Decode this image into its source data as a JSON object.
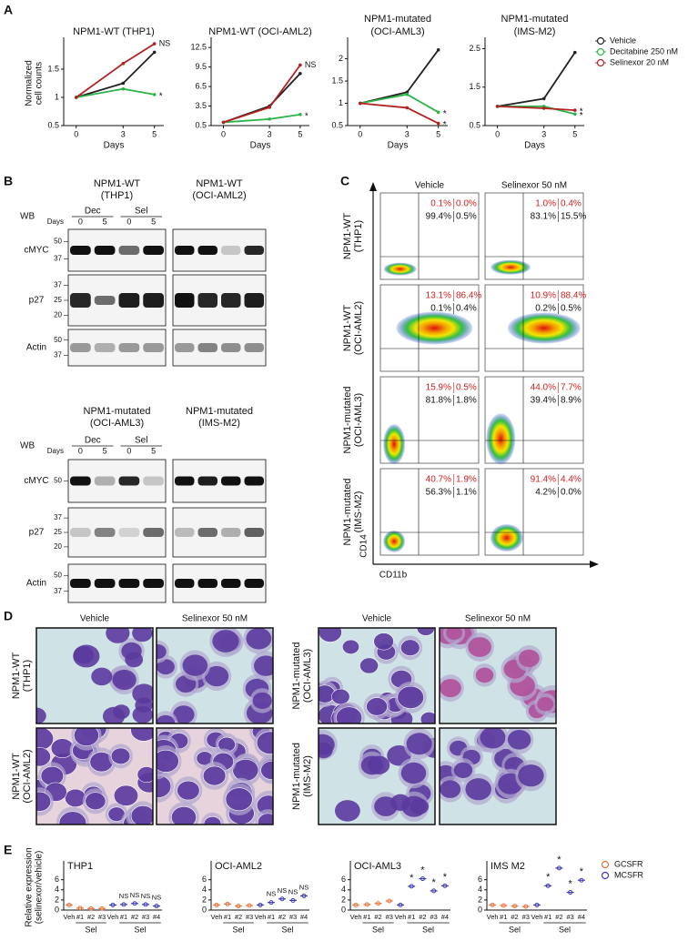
{
  "panel_labels": [
    "A",
    "B",
    "C",
    "D",
    "E"
  ],
  "chart_data": [
    {
      "type": "line",
      "title": "NPM1-WT (THP1)",
      "ylabel": [
        "Normalized",
        "cell counts"
      ],
      "xlabel": "Days",
      "x": [
        0,
        3,
        5
      ],
      "xlim": [
        -0.8,
        5.6
      ],
      "xticks": [
        0,
        3,
        5
      ],
      "ylim": [
        0.5,
        2.0
      ],
      "yticks": [
        0.5,
        1,
        1.5
      ],
      "series": [
        {
          "name": "Vehicle",
          "color": "#222222",
          "values": [
            1.0,
            1.25,
            1.8
          ]
        },
        {
          "name": "Decitabine 250 nM",
          "color": "#2db34a",
          "values": [
            1.0,
            1.15,
            1.05
          ]
        },
        {
          "name": "Selinexor 20 nM",
          "color": "#b22222",
          "values": [
            1.0,
            1.6,
            1.95
          ]
        }
      ],
      "annotations": [
        {
          "text": "NS",
          "series": 2
        },
        {
          "text": "*",
          "series": 1
        }
      ]
    },
    {
      "type": "line",
      "title": "NPM1-WT (OCI-AML2)",
      "xlabel": "Days",
      "x": [
        0,
        3,
        5
      ],
      "xlim": [
        -0.8,
        5.6
      ],
      "xticks": [
        0,
        3,
        5
      ],
      "ylim": [
        0.5,
        13.5
      ],
      "yticks": [
        0.5,
        3.5,
        6.5,
        9.5,
        12.5
      ],
      "series": [
        {
          "name": "Vehicle",
          "color": "#222222",
          "values": [
            1.0,
            3.5,
            8.5
          ]
        },
        {
          "name": "Decitabine 250 nM",
          "color": "#2db34a",
          "values": [
            1.0,
            1.5,
            2.2
          ]
        },
        {
          "name": "Selinexor 20 nM",
          "color": "#b22222",
          "values": [
            1.0,
            3.3,
            9.8
          ]
        }
      ],
      "annotations": [
        {
          "text": "NS",
          "series": 2
        },
        {
          "text": "*",
          "series": 1
        }
      ]
    },
    {
      "type": "line",
      "title": [
        "NPM1-mutated",
        "(OCI-AML3)"
      ],
      "xlabel": "Days",
      "x": [
        0,
        3,
        5
      ],
      "xlim": [
        -0.8,
        5.6
      ],
      "xticks": [
        0,
        3,
        5
      ],
      "ylim": [
        0.5,
        2.4
      ],
      "yticks": [
        0.5,
        1,
        1.5,
        2
      ],
      "series": [
        {
          "name": "Vehicle",
          "color": "#222222",
          "values": [
            1.0,
            1.25,
            2.2
          ]
        },
        {
          "name": "Decitabine 250 nM",
          "color": "#2db34a",
          "values": [
            1.0,
            1.2,
            0.8
          ]
        },
        {
          "name": "Selinexor 20 nM",
          "color": "#b22222",
          "values": [
            1.0,
            0.9,
            0.55
          ]
        }
      ],
      "annotations": [
        {
          "text": "*",
          "series": 1
        },
        {
          "text": "*",
          "series": 2
        }
      ]
    },
    {
      "type": "line",
      "title": [
        "NPM1-mutated",
        "(IMS-M2)"
      ],
      "xlabel": "Days",
      "legend": "right",
      "x": [
        0,
        3,
        5
      ],
      "xlim": [
        -0.8,
        5.6
      ],
      "xticks": [
        0,
        3,
        5
      ],
      "ylim": [
        0.5,
        2.7
      ],
      "yticks": [
        0.5,
        1.5,
        2.5
      ],
      "series": [
        {
          "name": "Vehicle",
          "color": "#222222",
          "values": [
            1.0,
            1.2,
            2.4
          ]
        },
        {
          "name": "Decitabine 250 nM",
          "color": "#2db34a",
          "values": [
            1.0,
            1.0,
            0.8
          ]
        },
        {
          "name": "Selinexor 20 nM",
          "color": "#b22222",
          "values": [
            1.0,
            0.95,
            0.9
          ]
        }
      ],
      "annotations": [
        {
          "text": "*",
          "series": 2
        },
        {
          "text": "*",
          "series": 1
        }
      ]
    },
    {
      "type": "dot",
      "title": "THP1",
      "ylabel": [
        "Relative expression",
        "(selinexor/vehicle)"
      ],
      "categories": [
        "Veh",
        "#1",
        "#2",
        "#3",
        "Veh",
        "#1",
        "#2",
        "#3",
        "#4"
      ],
      "groups": [
        "Sel",
        "Sel"
      ],
      "ylim": [
        0,
        9
      ],
      "yticks": [
        0,
        2,
        4,
        6
      ],
      "series": [
        {
          "name": "GCSFR",
          "color": "#e8743b",
          "values": [
            1.0,
            0.4,
            0.3,
            0.3,
            null,
            null,
            null,
            null,
            null
          ]
        },
        {
          "name": "MCSFR",
          "color": "#3b3bb3",
          "values": [
            null,
            null,
            null,
            null,
            1.0,
            1.1,
            1.3,
            1.1,
            0.8
          ]
        }
      ],
      "annotations": [
        null,
        null,
        null,
        null,
        null,
        "NS",
        "NS",
        "NS",
        "NS"
      ]
    },
    {
      "type": "dot",
      "title": "OCI-AML2",
      "categories": [
        "Veh",
        "#1",
        "#2",
        "#3",
        "Veh",
        "#1",
        "#2",
        "#3",
        "#4"
      ],
      "groups": [
        "Sel",
        "Sel"
      ],
      "ylim": [
        0,
        9
      ],
      "yticks": [
        0,
        2,
        4,
        6
      ],
      "series": [
        {
          "name": "GCSFR",
          "color": "#e8743b",
          "values": [
            1.0,
            1.2,
            0.8,
            0.9,
            null,
            null,
            null,
            null,
            null
          ]
        },
        {
          "name": "MCSFR",
          "color": "#3b3bb3",
          "values": [
            null,
            null,
            null,
            null,
            1.0,
            1.5,
            2.2,
            1.9,
            2.8
          ]
        }
      ],
      "annotations": [
        null,
        null,
        null,
        null,
        null,
        "NS",
        "NS",
        "NS",
        "NS"
      ]
    },
    {
      "type": "dot",
      "title": "OCI-AML3",
      "categories": [
        "Veh",
        "#1",
        "#2",
        "#3",
        "Veh",
        "#1",
        "#2",
        "#3",
        "#4"
      ],
      "groups": [
        "Sel",
        "Sel"
      ],
      "ylim": [
        0,
        9
      ],
      "yticks": [
        0,
        2,
        4,
        6
      ],
      "series": [
        {
          "name": "GCSFR",
          "color": "#e8743b",
          "values": [
            1.0,
            1.1,
            1.3,
            1.8,
            null,
            null,
            null,
            null,
            null
          ]
        },
        {
          "name": "MCSFR",
          "color": "#3b3bb3",
          "values": [
            null,
            null,
            null,
            null,
            1.0,
            4.7,
            6.2,
            3.8,
            4.8
          ]
        }
      ],
      "annotations": [
        null,
        null,
        null,
        null,
        null,
        "*",
        "*",
        "*",
        "*"
      ]
    },
    {
      "type": "dot",
      "title": "IMS M2",
      "legend": "right",
      "categories": [
        "Veh",
        "#1",
        "#2",
        "#3",
        "Veh",
        "#1",
        "#2",
        "#3",
        "#4"
      ],
      "groups": [
        "Sel",
        "Sel"
      ],
      "ylim": [
        0,
        9
      ],
      "yticks": [
        0,
        2,
        4,
        6
      ],
      "series": [
        {
          "name": "GCSFR",
          "color": "#e8743b",
          "values": [
            1.0,
            0.9,
            0.8,
            0.7,
            null,
            null,
            null,
            null,
            null
          ]
        },
        {
          "name": "MCSFR",
          "color": "#3b3bb3",
          "values": [
            null,
            null,
            null,
            null,
            1.0,
            4.8,
            8.3,
            3.5,
            5.9
          ]
        }
      ],
      "annotations": [
        null,
        null,
        null,
        null,
        null,
        "*",
        "*",
        "*",
        "*"
      ]
    }
  ],
  "blots": {
    "sets": [
      {
        "wb": "WB",
        "days": "Days",
        "treatments": [
          "Dec",
          "Sel"
        ],
        "timepoints": [
          "0",
          "5",
          "0",
          "5"
        ],
        "cells": [
          {
            "title": [
              "NPM1-WT",
              "(THP1)"
            ]
          },
          {
            "title": [
              "NPM1-WT",
              "(OCI-AML2)"
            ]
          }
        ],
        "rows": [
          {
            "name": "cMYC",
            "markers": [
              "50",
              "37"
            ]
          },
          {
            "name": "p27",
            "markers": [
              "37",
              "25",
              "20"
            ]
          },
          {
            "name": "Actin",
            "markers": [
              "50",
              "37"
            ]
          }
        ]
      },
      {
        "wb": "WB",
        "days": "Days",
        "treatments": [
          "Dec",
          "Sel"
        ],
        "timepoints": [
          "0",
          "5",
          "0",
          "5"
        ],
        "cells": [
          {
            "title": [
              "NPM1-mutated",
              "(OCI-AML3)"
            ]
          },
          {
            "title": [
              "NPM1-mutated",
              "(IMS-M2)"
            ]
          }
        ],
        "rows": [
          {
            "name": "cMYC",
            "markers": [
              "50"
            ]
          },
          {
            "name": "p27",
            "markers": [
              "37",
              "25",
              "20"
            ]
          },
          {
            "name": "Actin",
            "markers": [
              "50",
              "37"
            ]
          }
        ]
      }
    ]
  },
  "flow": {
    "columns": [
      "Vehicle",
      "Selinexor 50 nM"
    ],
    "ylabel": "CD14",
    "xlabel": "CD11b",
    "rows": [
      {
        "label": [
          "NPM1-WT",
          "(THP1)"
        ],
        "plots": [
          [
            "0.1%",
            "0.0%",
            "99.4%",
            "0.5%"
          ],
          [
            "1.0%",
            "0.4%",
            "83.1%",
            "15.5%"
          ]
        ]
      },
      {
        "label": [
          "NPM1-WT",
          "(OCI-AML2)"
        ],
        "plots": [
          [
            "13.1%",
            "86.4%",
            "0.1%",
            "0.4%"
          ],
          [
            "10.9%",
            "88.4%",
            "0.2%",
            "0.5%"
          ]
        ]
      },
      {
        "label": [
          "NPM1-mutated",
          "(OCI-AML3)"
        ],
        "plots": [
          [
            "15.9%",
            "0.5%",
            "81.8%",
            "1.8%"
          ],
          [
            "44.0%",
            "7.7%",
            "39.4%",
            "8.9%"
          ]
        ]
      },
      {
        "label": [
          "NPM1-mutated",
          "(IMS-M2)"
        ],
        "plots": [
          [
            "40.7%",
            "1.9%",
            "56.3%",
            "1.1%"
          ],
          [
            "91.4%",
            "4.4%",
            "4.2%",
            "0.0%"
          ]
        ]
      }
    ]
  },
  "micrographs": {
    "columns": [
      "Vehicle",
      "Selinexor 50 nM"
    ],
    "left_rows": [
      [
        "NPM1-WT",
        "(THP1)"
      ],
      [
        "NPM1-WT",
        "(OCI-AML2)"
      ]
    ],
    "right_rows": [
      [
        "NPM1-mutated",
        "(OCI-AML3)"
      ],
      [
        "NPM1-mutated",
        "(IMS-M2)"
      ]
    ]
  }
}
